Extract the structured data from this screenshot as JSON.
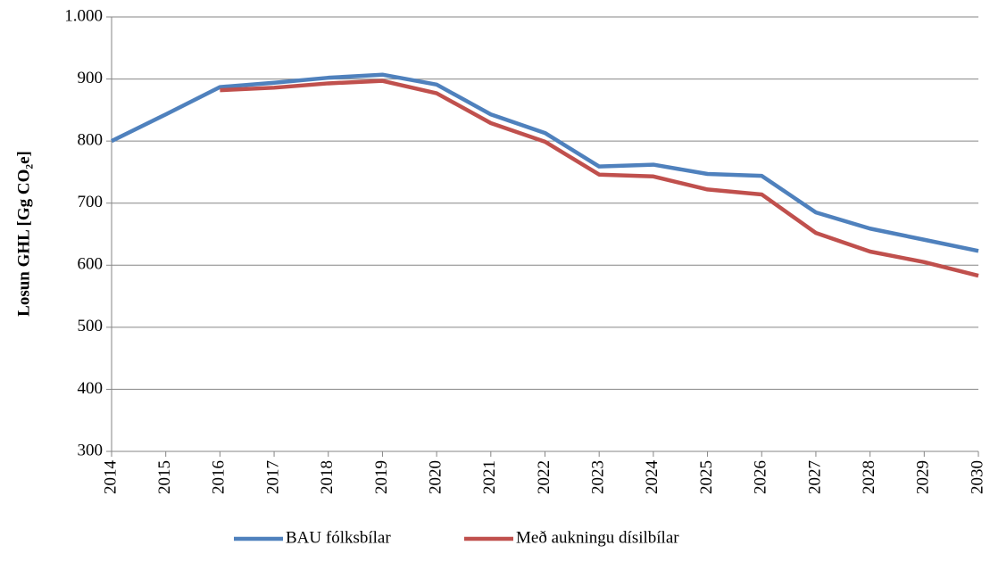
{
  "chart_data": {
    "type": "line",
    "y_label": "Losun GHL [Gg CO₂e]",
    "categories": [
      "2014",
      "2015",
      "2016",
      "2017",
      "2018",
      "2019",
      "2020",
      "2021",
      "2022",
      "2023",
      "2024",
      "2025",
      "2026",
      "2027",
      "2028",
      "2029",
      "2030"
    ],
    "series": [
      {
        "name": "BAU fólksbílar",
        "color": "#4f81bd",
        "values": [
          800,
          843,
          887,
          894,
          902,
          907,
          891,
          843,
          813,
          759,
          762,
          747,
          744,
          685,
          659,
          641,
          623
        ]
      },
      {
        "name": "Með aukningu dísilbílar",
        "color": "#c0504d",
        "values": [
          null,
          null,
          882,
          886,
          893,
          897,
          877,
          829,
          799,
          746,
          743,
          722,
          714,
          652,
          622,
          605,
          583
        ]
      }
    ],
    "ylim": [
      300,
      1000
    ],
    "yticks": [
      300,
      400,
      500,
      600,
      700,
      800,
      900,
      {
        "value": 1000,
        "label": "1.000"
      }
    ],
    "grid": true
  }
}
